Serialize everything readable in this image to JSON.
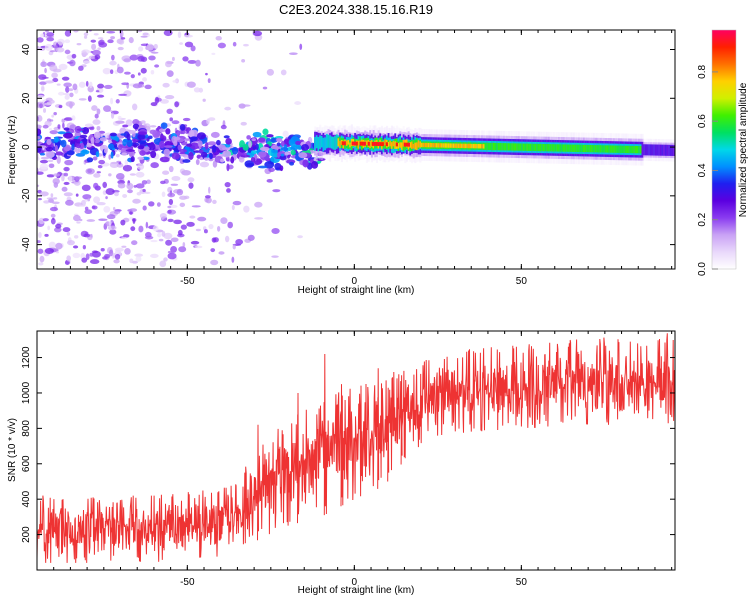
{
  "title": "C2E3.2024.338.15.16.R19",
  "chart_data": [
    {
      "type": "heatmap",
      "panel": "top",
      "xlabel": "Height of straight line (km)",
      "ylabel": "Frequency (Hz)",
      "xlim": [
        -95,
        96
      ],
      "ylim": [
        -50,
        48
      ],
      "xticks": [
        -50,
        0,
        50
      ],
      "yticks": [
        -40,
        -20,
        0,
        20,
        40
      ],
      "grid": false,
      "colorbar": {
        "label": "Normalized spectral amplitude",
        "range": [
          0,
          0.97
        ],
        "ticks": [
          0.0,
          0.2,
          0.4,
          0.6,
          0.8
        ],
        "colormap": [
          "#ffffff",
          "#e9d8fb",
          "#c9a2f5",
          "#8a3cf0",
          "#5b00e0",
          "#1f1ff0",
          "#0090ff",
          "#00d8e8",
          "#00e060",
          "#40f000",
          "#d0f000",
          "#ffd000",
          "#ff7000",
          "#ff2000",
          "#ff0060"
        ]
      },
      "features": {
        "noisy_region_x": [
          -95,
          -12
        ],
        "band_center_hz": [
          1.5,
          -2.5
        ],
        "band_x": [
          -12,
          96
        ],
        "band_peak_amplitude_x": [
          -5,
          15
        ],
        "tail_low_amplitude_x": [
          86,
          96
        ]
      }
    },
    {
      "type": "line",
      "panel": "bottom",
      "xlabel": "Height of straight line (km)",
      "ylabel": "SNR (10 * v/v)",
      "xlim": [
        -95,
        96
      ],
      "ylim": [
        0,
        1350
      ],
      "xticks": [
        -50,
        0,
        50
      ],
      "yticks": [
        200,
        400,
        600,
        800,
        1000,
        1200
      ],
      "grid": false,
      "series": [
        {
          "color": "#ee3333",
          "envelope_x": [
            -95,
            -60,
            -45,
            -35,
            -28,
            -20,
            -10,
            -5,
            0,
            5,
            10,
            15,
            20,
            25,
            35,
            50,
            65,
            80,
            96
          ],
          "envelope_low": [
            40,
            40,
            60,
            100,
            180,
            250,
            300,
            350,
            400,
            430,
            500,
            620,
            700,
            760,
            780,
            800,
            820,
            820,
            830
          ],
          "envelope_high": [
            420,
            420,
            450,
            520,
            700,
            850,
            950,
            1000,
            1050,
            1080,
            1100,
            1150,
            1180,
            1200,
            1250,
            1270,
            1300,
            1320,
            1340
          ],
          "spikes": [
            [
              -29,
              820
            ],
            [
              -17,
              1000
            ],
            [
              -9,
              1220
            ],
            [
              -4,
              1050
            ],
            [
              7,
              1140
            ],
            [
              10,
              1030
            ],
            [
              14,
              1100
            ]
          ]
        }
      ]
    }
  ]
}
